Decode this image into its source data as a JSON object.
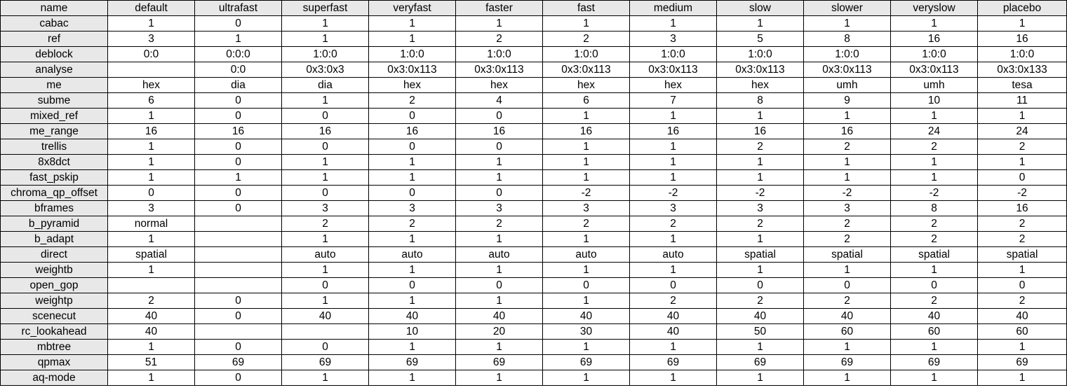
{
  "columns": [
    "name",
    "default",
    "ultrafast",
    "superfast",
    "veryfast",
    "faster",
    "fast",
    "medium",
    "slow",
    "slower",
    "veryslow",
    "placebo"
  ],
  "rows": [
    {
      "name": "cabac",
      "values": [
        "1",
        "0",
        "1",
        "1",
        "1",
        "1",
        "1",
        "1",
        "1",
        "1",
        "1"
      ]
    },
    {
      "name": "ref",
      "values": [
        "3",
        "1",
        "1",
        "1",
        "2",
        "2",
        "3",
        "5",
        "8",
        "16",
        "16"
      ]
    },
    {
      "name": "deblock",
      "values": [
        "0:0",
        "0:0:0",
        "1:0:0",
        "1:0:0",
        "1:0:0",
        "1:0:0",
        "1:0:0",
        "1:0:0",
        "1:0:0",
        "1:0:0",
        "1:0:0"
      ]
    },
    {
      "name": "analyse",
      "values": [
        "",
        "0:0",
        "0x3:0x3",
        "0x3:0x113",
        "0x3:0x113",
        "0x3:0x113",
        "0x3:0x113",
        "0x3:0x113",
        "0x3:0x113",
        "0x3:0x113",
        "0x3:0x133"
      ]
    },
    {
      "name": "me",
      "values": [
        "hex",
        "dia",
        "dia",
        "hex",
        "hex",
        "hex",
        "hex",
        "hex",
        "umh",
        "umh",
        "tesa"
      ]
    },
    {
      "name": "subme",
      "values": [
        "6",
        "0",
        "1",
        "2",
        "4",
        "6",
        "7",
        "8",
        "9",
        "10",
        "11"
      ]
    },
    {
      "name": "mixed_ref",
      "values": [
        "1",
        "0",
        "0",
        "0",
        "0",
        "1",
        "1",
        "1",
        "1",
        "1",
        "1"
      ]
    },
    {
      "name": "me_range",
      "values": [
        "16",
        "16",
        "16",
        "16",
        "16",
        "16",
        "16",
        "16",
        "16",
        "24",
        "24"
      ]
    },
    {
      "name": "trellis",
      "values": [
        "1",
        "0",
        "0",
        "0",
        "0",
        "1",
        "1",
        "2",
        "2",
        "2",
        "2"
      ]
    },
    {
      "name": "8x8dct",
      "values": [
        "1",
        "0",
        "1",
        "1",
        "1",
        "1",
        "1",
        "1",
        "1",
        "1",
        "1"
      ]
    },
    {
      "name": "fast_pskip",
      "values": [
        "1",
        "1",
        "1",
        "1",
        "1",
        "1",
        "1",
        "1",
        "1",
        "1",
        "0"
      ]
    },
    {
      "name": "chroma_qp_offset",
      "values": [
        "0",
        "0",
        "0",
        "0",
        "0",
        "-2",
        "-2",
        "-2",
        "-2",
        "-2",
        "-2"
      ]
    },
    {
      "name": "bframes",
      "values": [
        "3",
        "0",
        "3",
        "3",
        "3",
        "3",
        "3",
        "3",
        "3",
        "8",
        "16"
      ]
    },
    {
      "name": "b_pyramid",
      "values": [
        "normal",
        "",
        "2",
        "2",
        "2",
        "2",
        "2",
        "2",
        "2",
        "2",
        "2"
      ]
    },
    {
      "name": "b_adapt",
      "values": [
        "1",
        "",
        "1",
        "1",
        "1",
        "1",
        "1",
        "1",
        "2",
        "2",
        "2"
      ]
    },
    {
      "name": "direct",
      "values": [
        "spatial",
        "",
        "auto",
        "auto",
        "auto",
        "auto",
        "auto",
        "spatial",
        "spatial",
        "spatial",
        "spatial"
      ]
    },
    {
      "name": "weightb",
      "values": [
        "1",
        "",
        "1",
        "1",
        "1",
        "1",
        "1",
        "1",
        "1",
        "1",
        "1"
      ]
    },
    {
      "name": "open_gop",
      "values": [
        "",
        "",
        "0",
        "0",
        "0",
        "0",
        "0",
        "0",
        "0",
        "0",
        "0"
      ]
    },
    {
      "name": "weightp",
      "values": [
        "2",
        "0",
        "1",
        "1",
        "1",
        "1",
        "2",
        "2",
        "2",
        "2",
        "2"
      ]
    },
    {
      "name": "scenecut",
      "values": [
        "40",
        "0",
        "40",
        "40",
        "40",
        "40",
        "40",
        "40",
        "40",
        "40",
        "40"
      ]
    },
    {
      "name": "rc_lookahead",
      "values": [
        "40",
        "",
        "",
        "10",
        "20",
        "30",
        "40",
        "50",
        "60",
        "60",
        "60"
      ]
    },
    {
      "name": "mbtree",
      "values": [
        "1",
        "0",
        "0",
        "1",
        "1",
        "1",
        "1",
        "1",
        "1",
        "1",
        "1"
      ]
    },
    {
      "name": "qpmax",
      "values": [
        "51",
        "69",
        "69",
        "69",
        "69",
        "69",
        "69",
        "69",
        "69",
        "69",
        "69"
      ]
    },
    {
      "name": "aq-mode",
      "values": [
        "1",
        "0",
        "1",
        "1",
        "1",
        "1",
        "1",
        "1",
        "1",
        "1",
        "1"
      ]
    }
  ]
}
